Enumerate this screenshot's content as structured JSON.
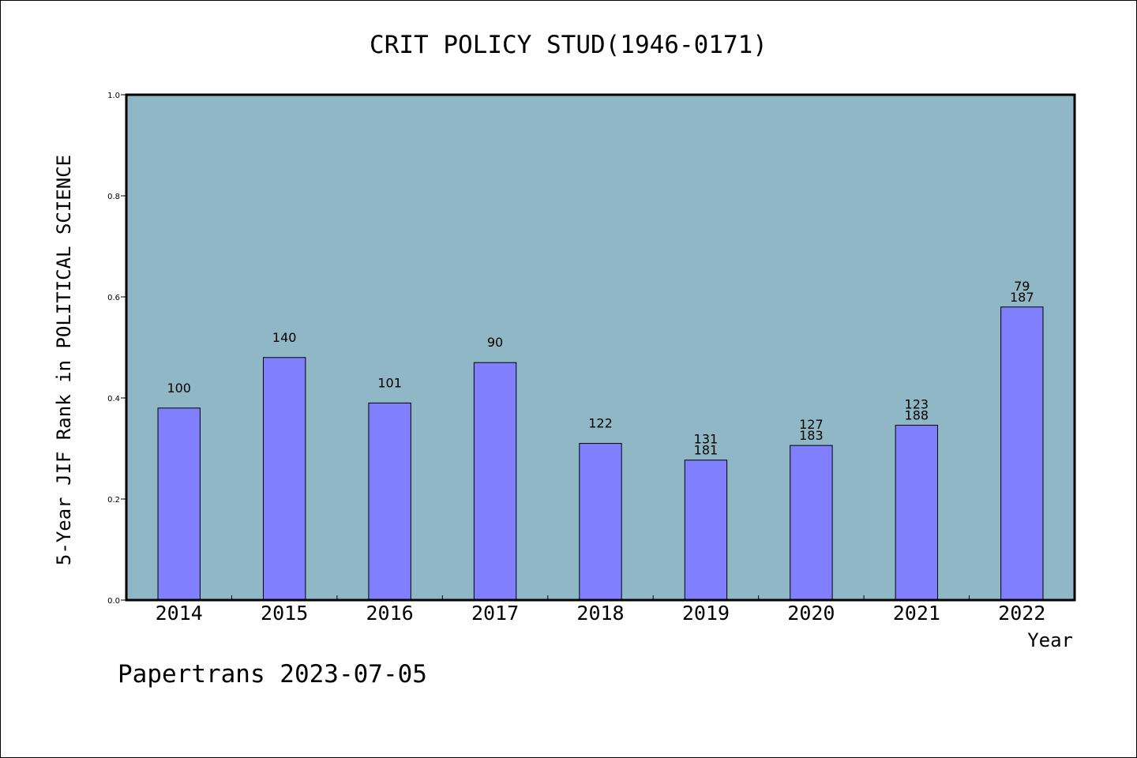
{
  "chart_data": {
    "type": "bar",
    "title": "CRIT POLICY STUD(1946-0171)",
    "xlabel": "Year",
    "ylabel": "5-Year JIF Rank in POLITICAL SCIENCE",
    "ylim": [
      0,
      1.0
    ],
    "yticks": [
      "0.0",
      "0.2",
      "0.4",
      "0.6",
      "0.8",
      "1.0"
    ],
    "categories": [
      "2014",
      "2015",
      "2016",
      "2017",
      "2018",
      "2019",
      "2020",
      "2021",
      "2022"
    ],
    "values": [
      0.38,
      0.48,
      0.39,
      0.47,
      0.31,
      0.277,
      0.306,
      0.346,
      0.58
    ],
    "bar_labels": [
      [
        "100"
      ],
      [
        "140"
      ],
      [
        "101"
      ],
      [
        "90"
      ],
      [
        "122"
      ],
      [
        "131",
        "181"
      ],
      [
        "127",
        "183"
      ],
      [
        "123",
        "188"
      ],
      [
        "79",
        "187"
      ]
    ],
    "grid": false,
    "colors": {
      "bar": "#8080ff",
      "plot_background": "#8fb7c6",
      "axes": "#000000"
    }
  },
  "footer": {
    "text": "Papertrans 2023-07-05"
  }
}
